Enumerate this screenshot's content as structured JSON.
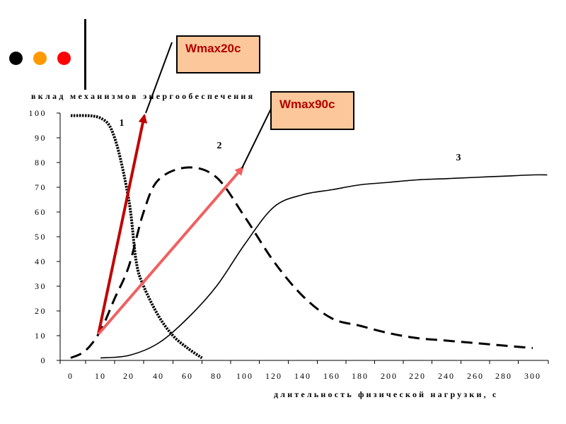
{
  "legend_dots": [
    {
      "name": "black",
      "color": "#000000"
    },
    {
      "name": "orange",
      "color": "#ff9900"
    },
    {
      "name": "red",
      "color": "#ff0000"
    }
  ],
  "callouts": [
    {
      "label": "Wmax20c",
      "color": "#fcc79a"
    },
    {
      "label": "Wmax90c",
      "color": "#fcc79a"
    }
  ],
  "chart_data": {
    "type": "line",
    "title": "",
    "ylabel": "вклад механизмов энергообеспечения",
    "xlabel": "длительность физической нагрузки, с",
    "ylim": [
      0,
      100
    ],
    "x_categories": [
      "0",
      "10",
      "20",
      "40",
      "60",
      "80",
      "100",
      "120",
      "140",
      "160",
      "180",
      "200",
      "220",
      "240",
      "260",
      "280",
      "300"
    ],
    "y_ticks": [
      0,
      10,
      20,
      30,
      40,
      50,
      60,
      70,
      80,
      90,
      100
    ],
    "grid": false,
    "series": [
      {
        "name": "1",
        "style": "dotted",
        "x": [
          0,
          10,
          15,
          20,
          25,
          30,
          40,
          50,
          60,
          70
        ],
        "values": [
          99,
          98,
          90,
          65,
          40,
          30,
          18,
          10,
          5,
          1
        ]
      },
      {
        "name": "2",
        "style": "dashed",
        "x": [
          0,
          5,
          10,
          15,
          20,
          30,
          40,
          60,
          80,
          100,
          120,
          140,
          160,
          180,
          200,
          220,
          240,
          260,
          280,
          300
        ],
        "values": [
          1,
          4,
          12,
          25,
          38,
          60,
          73,
          78,
          74,
          58,
          40,
          26,
          17,
          14,
          11,
          9,
          8,
          7,
          6,
          5
        ]
      },
      {
        "name": "3",
        "style": "solid",
        "x": [
          10,
          20,
          40,
          60,
          80,
          100,
          120,
          140,
          160,
          180,
          200,
          220,
          240,
          260,
          280,
          300,
          310
        ],
        "values": [
          1,
          2,
          7,
          17,
          30,
          47,
          62,
          67,
          69,
          71,
          72,
          73,
          73.5,
          74,
          74.5,
          75,
          75
        ]
      }
    ],
    "annotations": [
      {
        "text": "Wmax20c",
        "arrow_from": [
          5,
          10
        ],
        "arrow_to": [
          30,
          99
        ],
        "arrow_color": "#c00000"
      },
      {
        "text": "Wmax90c",
        "arrow_from": [
          5,
          10
        ],
        "arrow_to": [
          100,
          78
        ],
        "arrow_color": "#f06060"
      }
    ]
  }
}
